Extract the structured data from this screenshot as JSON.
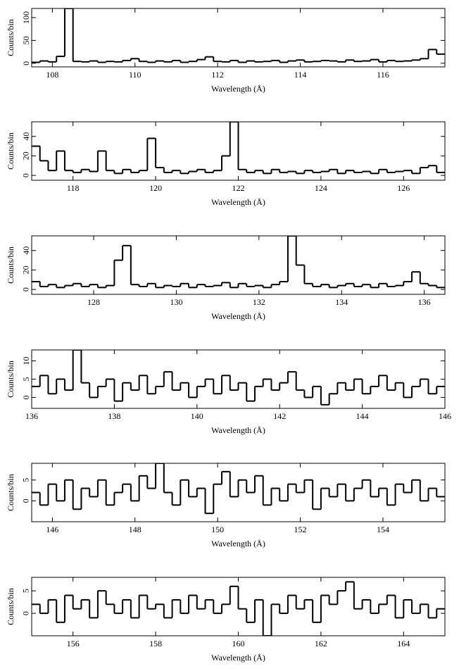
{
  "chart_data": [
    {
      "type": "step",
      "xlabel": "Wavelength (Å)",
      "ylabel": "Counts/bin",
      "color": "#000000",
      "xlim": [
        107.5,
        117.5
      ],
      "ylim": [
        -8,
        120
      ],
      "xticks": [
        108,
        110,
        112,
        114,
        116
      ],
      "yticks": [
        0,
        50,
        100
      ],
      "x": [
        107.6,
        107.8,
        108.0,
        108.2,
        108.4,
        108.6,
        108.8,
        109.0,
        109.2,
        109.4,
        109.6,
        109.8,
        110.0,
        110.2,
        110.4,
        110.6,
        110.8,
        111.0,
        111.2,
        111.4,
        111.6,
        111.8,
        112.0,
        112.2,
        112.4,
        112.6,
        112.8,
        113.0,
        113.2,
        113.4,
        113.6,
        113.8,
        114.0,
        114.2,
        114.4,
        114.6,
        114.8,
        115.0,
        115.2,
        115.4,
        115.6,
        115.8,
        116.0,
        116.2,
        116.4,
        116.6,
        116.8,
        117.0,
        117.2,
        117.4
      ],
      "values": [
        2,
        5,
        3,
        15,
        120,
        4,
        3,
        5,
        2,
        4,
        3,
        6,
        10,
        4,
        2,
        5,
        3,
        6,
        2,
        4,
        8,
        14,
        4,
        3,
        6,
        2,
        5,
        3,
        4,
        6,
        2,
        5,
        7,
        3,
        4,
        6,
        5,
        3,
        7,
        4,
        5,
        8,
        3,
        6,
        4,
        5,
        7,
        10,
        30,
        20
      ]
    },
    {
      "type": "step",
      "xlabel": "Wavelength (Å)",
      "ylabel": "Counts/bin",
      "color": "#000000",
      "xlim": [
        117,
        127
      ],
      "ylim": [
        -5,
        55
      ],
      "xticks": [
        118,
        120,
        122,
        124,
        126
      ],
      "yticks": [
        0,
        20,
        40
      ],
      "x": [
        117.1,
        117.3,
        117.5,
        117.7,
        117.9,
        118.1,
        118.3,
        118.5,
        118.7,
        118.9,
        119.1,
        119.3,
        119.5,
        119.7,
        119.9,
        120.1,
        120.3,
        120.5,
        120.7,
        120.9,
        121.1,
        121.3,
        121.5,
        121.7,
        121.9,
        122.1,
        122.3,
        122.5,
        122.7,
        122.9,
        123.1,
        123.3,
        123.5,
        123.7,
        123.9,
        124.1,
        124.3,
        124.5,
        124.7,
        124.9,
        125.1,
        125.3,
        125.5,
        125.7,
        125.9,
        126.1,
        126.3,
        126.5,
        126.7,
        126.9
      ],
      "values": [
        30,
        15,
        5,
        25,
        5,
        3,
        6,
        4,
        25,
        5,
        2,
        6,
        3,
        5,
        38,
        8,
        3,
        5,
        2,
        4,
        6,
        3,
        5,
        20,
        55,
        6,
        3,
        5,
        2,
        6,
        3,
        4,
        2,
        5,
        3,
        4,
        6,
        2,
        5,
        3,
        4,
        2,
        6,
        3,
        4,
        5,
        2,
        8,
        10,
        3
      ]
    },
    {
      "type": "step",
      "xlabel": "Wavelength (Å)",
      "ylabel": "Counts/bin",
      "color": "#000000",
      "xlim": [
        126.5,
        136.5
      ],
      "ylim": [
        -5,
        55
      ],
      "xticks": [
        128,
        130,
        132,
        134,
        136
      ],
      "yticks": [
        0,
        20,
        40
      ],
      "x": [
        126.6,
        126.8,
        127.0,
        127.2,
        127.4,
        127.6,
        127.8,
        128.0,
        128.2,
        128.4,
        128.6,
        128.8,
        129.0,
        129.2,
        129.4,
        129.6,
        129.8,
        130.0,
        130.2,
        130.4,
        130.6,
        130.8,
        131.0,
        131.2,
        131.4,
        131.6,
        131.8,
        132.0,
        132.2,
        132.4,
        132.6,
        132.8,
        133.0,
        133.2,
        133.4,
        133.6,
        133.8,
        134.0,
        134.2,
        134.4,
        134.6,
        134.8,
        135.0,
        135.2,
        135.4,
        135.6,
        135.8,
        136.0,
        136.2,
        136.4
      ],
      "values": [
        8,
        3,
        5,
        2,
        4,
        6,
        3,
        5,
        2,
        4,
        30,
        45,
        5,
        3,
        6,
        2,
        4,
        3,
        6,
        2,
        5,
        3,
        4,
        7,
        2,
        6,
        3,
        4,
        2,
        5,
        8,
        55,
        25,
        6,
        3,
        5,
        2,
        4,
        6,
        3,
        5,
        2,
        6,
        3,
        4,
        8,
        18,
        6,
        4,
        2
      ]
    },
    {
      "type": "step",
      "xlabel": "Wavelength (Å)",
      "ylabel": "Counts/bin",
      "color": "#000000",
      "xlim": [
        136,
        146
      ],
      "ylim": [
        -3,
        13
      ],
      "xticks": [
        136,
        138,
        140,
        142,
        144,
        146
      ],
      "yticks": [
        0,
        5,
        10
      ],
      "x": [
        136.1,
        136.3,
        136.5,
        136.7,
        136.9,
        137.1,
        137.3,
        137.5,
        137.7,
        137.9,
        138.1,
        138.3,
        138.5,
        138.7,
        138.9,
        139.1,
        139.3,
        139.5,
        139.7,
        139.9,
        140.1,
        140.3,
        140.5,
        140.7,
        140.9,
        141.1,
        141.3,
        141.5,
        141.7,
        141.9,
        142.1,
        142.3,
        142.5,
        142.7,
        142.9,
        143.1,
        143.3,
        143.5,
        143.7,
        143.9,
        144.1,
        144.3,
        144.5,
        144.7,
        144.9,
        145.1,
        145.3,
        145.5,
        145.7,
        145.9
      ],
      "values": [
        3,
        6,
        1,
        5,
        2,
        13,
        4,
        0,
        3,
        5,
        -1,
        4,
        2,
        6,
        1,
        3,
        7,
        2,
        4,
        0,
        3,
        5,
        1,
        6,
        2,
        4,
        -1,
        3,
        5,
        2,
        4,
        7,
        2,
        0,
        3,
        -2,
        1,
        4,
        2,
        5,
        1,
        3,
        6,
        2,
        4,
        0,
        3,
        5,
        1,
        3
      ]
    },
    {
      "type": "step",
      "xlabel": "Wavelength (Å)",
      "ylabel": "Counts/bin",
      "color": "#000000",
      "xlim": [
        145.5,
        155.5
      ],
      "ylim": [
        -5,
        9
      ],
      "xticks": [
        146,
        148,
        150,
        152,
        154
      ],
      "yticks": [
        0,
        5
      ],
      "x": [
        145.6,
        145.8,
        146.0,
        146.2,
        146.4,
        146.6,
        146.8,
        147.0,
        147.2,
        147.4,
        147.6,
        147.8,
        148.0,
        148.2,
        148.4,
        148.6,
        148.8,
        149.0,
        149.2,
        149.4,
        149.6,
        149.8,
        150.0,
        150.2,
        150.4,
        150.6,
        150.8,
        151.0,
        151.2,
        151.4,
        151.6,
        151.8,
        152.0,
        152.2,
        152.4,
        152.6,
        152.8,
        153.0,
        153.2,
        153.4,
        153.6,
        153.8,
        154.0,
        154.2,
        154.4,
        154.6,
        154.8,
        155.0,
        155.2,
        155.4
      ],
      "values": [
        2,
        -1,
        4,
        0,
        5,
        -2,
        3,
        1,
        5,
        -1,
        2,
        4,
        0,
        6,
        3,
        9,
        2,
        -1,
        5,
        1,
        3,
        -3,
        4,
        7,
        1,
        5,
        2,
        6,
        -1,
        3,
        0,
        4,
        2,
        5,
        -2,
        3,
        1,
        4,
        0,
        3,
        5,
        1,
        3,
        -1,
        4,
        2,
        5,
        0,
        3,
        1
      ]
    },
    {
      "type": "step",
      "xlabel": "Wavelength (Å)",
      "ylabel": "Counts/bin",
      "color": "#000000",
      "xlim": [
        155,
        165
      ],
      "ylim": [
        -5,
        8
      ],
      "xticks": [
        156,
        158,
        160,
        162,
        164
      ],
      "yticks": [
        0,
        5
      ],
      "x": [
        155.1,
        155.3,
        155.5,
        155.7,
        155.9,
        156.1,
        156.3,
        156.5,
        156.7,
        156.9,
        157.1,
        157.3,
        157.5,
        157.7,
        157.9,
        158.1,
        158.3,
        158.5,
        158.7,
        158.9,
        159.1,
        159.3,
        159.5,
        159.7,
        159.9,
        160.1,
        160.3,
        160.5,
        160.7,
        160.9,
        161.1,
        161.3,
        161.5,
        161.7,
        161.9,
        162.1,
        162.3,
        162.5,
        162.7,
        162.9,
        163.1,
        163.3,
        163.5,
        163.7,
        163.9,
        164.1,
        164.3,
        164.5,
        164.7,
        164.9
      ],
      "values": [
        2,
        0,
        3,
        -2,
        4,
        1,
        3,
        -1,
        5,
        2,
        0,
        3,
        -1,
        4,
        1,
        2,
        -1,
        3,
        0,
        4,
        1,
        3,
        0,
        2,
        6,
        1,
        -2,
        3,
        -5,
        2,
        0,
        4,
        1,
        3,
        -2,
        4,
        2,
        5,
        7,
        1,
        3,
        0,
        2,
        4,
        -1,
        3,
        0,
        2,
        -1,
        1
      ]
    }
  ]
}
